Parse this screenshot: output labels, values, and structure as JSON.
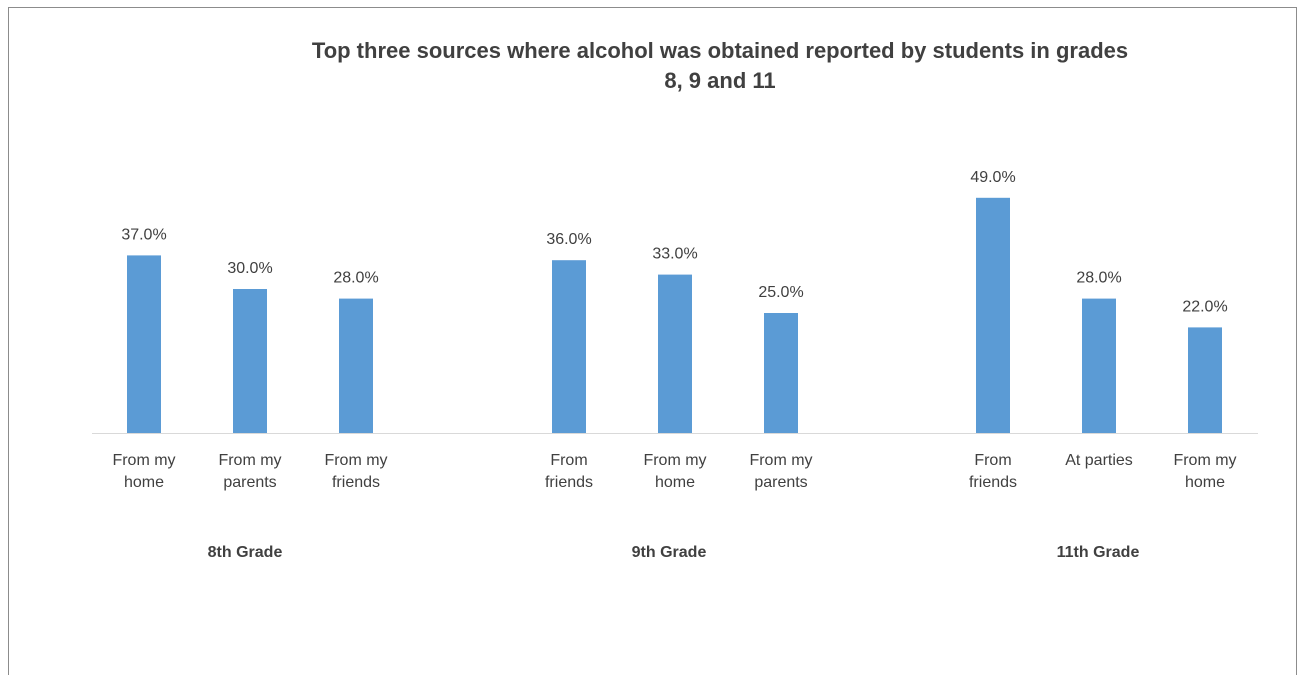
{
  "chart_data": {
    "type": "bar",
    "title_line1": "Top three sources where alcohol was obtained reported by students in grades",
    "title_line2": "8, 9 and 11",
    "ylim": [
      0,
      55
    ],
    "groups": [
      {
        "name": "8th Grade",
        "bars": [
          {
            "label": [
              "From my",
              "home"
            ],
            "value": 37.0,
            "text": "37.0%"
          },
          {
            "label": [
              "From my",
              "parents"
            ],
            "value": 30.0,
            "text": "30.0%"
          },
          {
            "label": [
              "From my",
              "friends"
            ],
            "value": 28.0,
            "text": "28.0%"
          }
        ]
      },
      {
        "name": "9th Grade",
        "bars": [
          {
            "label": [
              "From",
              "friends"
            ],
            "value": 36.0,
            "text": "36.0%"
          },
          {
            "label": [
              "From my",
              "home"
            ],
            "value": 33.0,
            "text": "33.0%"
          },
          {
            "label": [
              "From my",
              "parents"
            ],
            "value": 25.0,
            "text": "25.0%"
          }
        ]
      },
      {
        "name": "11th Grade",
        "bars": [
          {
            "label": [
              "From",
              "friends"
            ],
            "value": 49.0,
            "text": "49.0%"
          },
          {
            "label": [
              "At parties"
            ],
            "value": 28.0,
            "text": "28.0%"
          },
          {
            "label": [
              "From my",
              "home"
            ],
            "value": 22.0,
            "text": "22.0%"
          }
        ]
      }
    ],
    "bar_color": "#5b9bd5",
    "axis_color": "#d9d9d9",
    "text_color": "#404040",
    "grid": false
  }
}
